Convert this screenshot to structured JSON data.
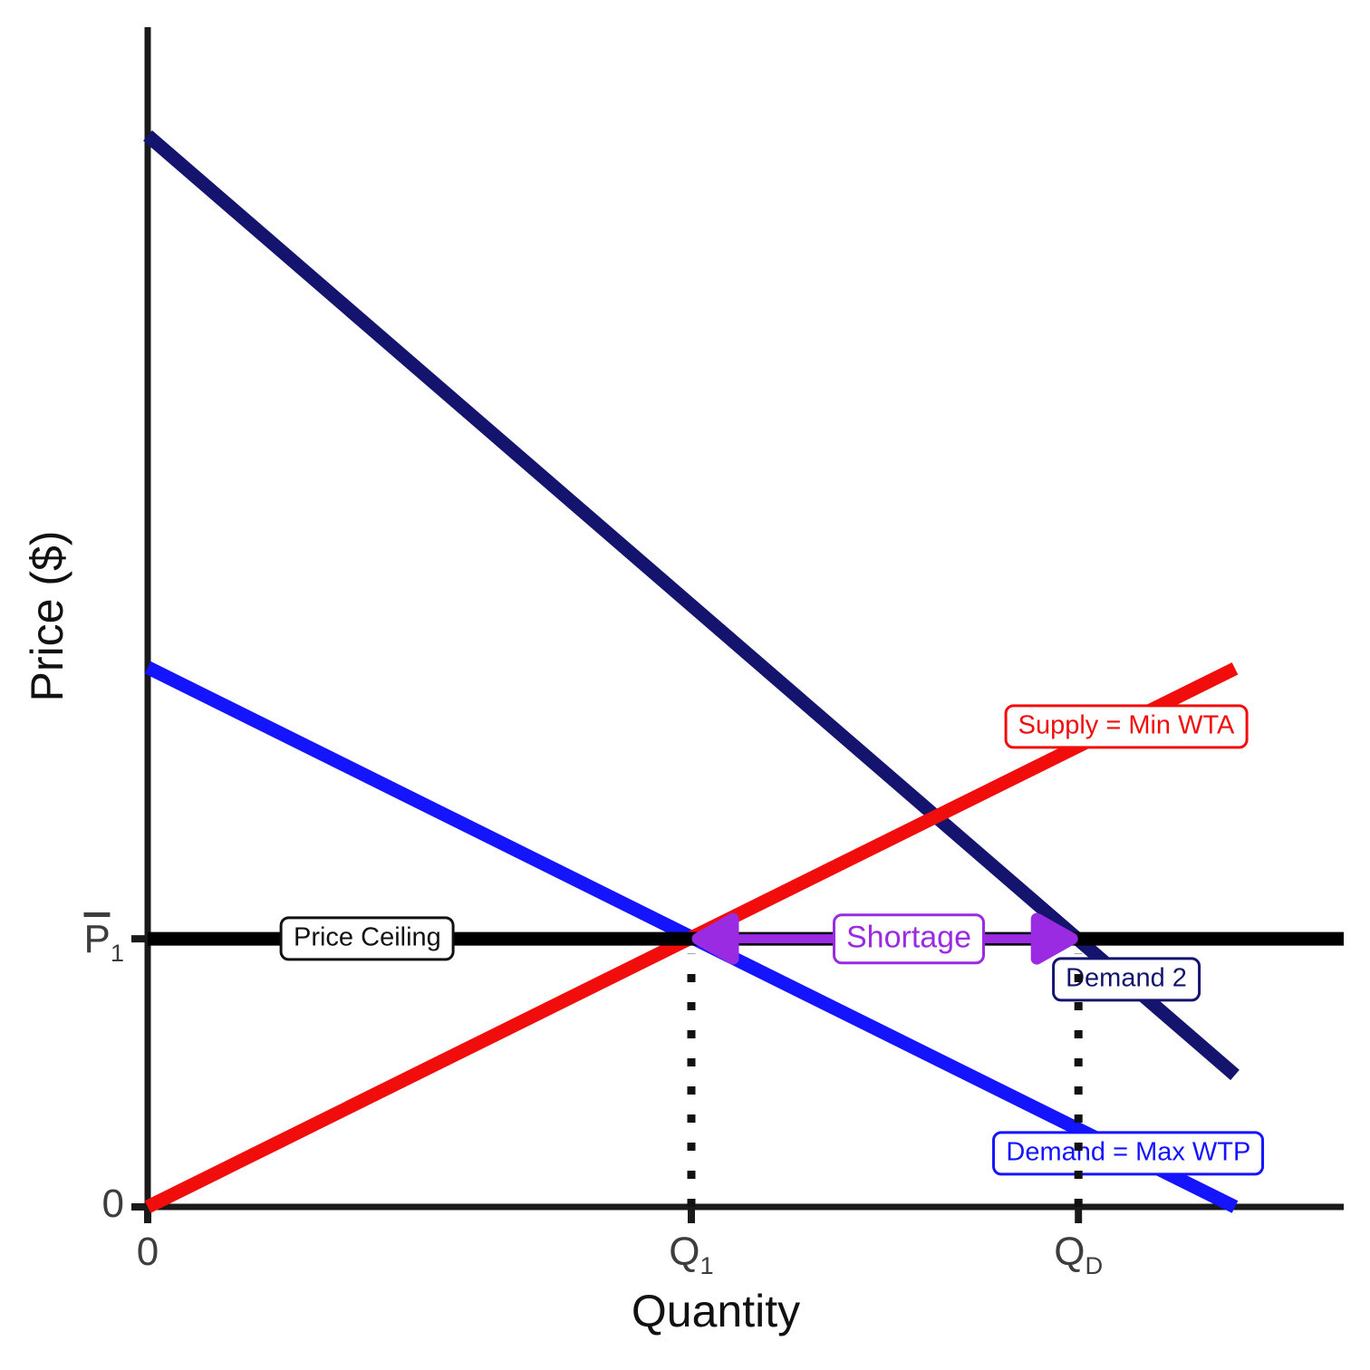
{
  "figure": {
    "background": "#ffffff",
    "axis_color": "#1a1a1a",
    "tick_label_color": "#3d3d3d",
    "guide_color": "#111111"
  },
  "chart_data": {
    "type": "line",
    "title": "",
    "xlabel": "Quantity",
    "ylabel": "Price ($)",
    "xlim": [
      0,
      110
    ],
    "ylim": [
      0,
      110
    ],
    "grid": false,
    "legend_position": "none",
    "series": [
      {
        "name": "Demand 2",
        "color": "#14146e",
        "width": 15,
        "points": [
          [
            0,
            99.9
          ],
          [
            100,
            12.3
          ]
        ]
      },
      {
        "name": "Demand = Max WTP",
        "color": "#1414ff",
        "width": 15,
        "points": [
          [
            0,
            50.3
          ],
          [
            100,
            0
          ]
        ]
      },
      {
        "name": "Supply = Min WTA",
        "color": "#f20d0d",
        "width": 15,
        "points": [
          [
            0,
            0
          ],
          [
            100,
            50.2
          ]
        ]
      },
      {
        "name": "Price Ceiling",
        "color": "#000000",
        "width": 15,
        "points": [
          [
            0,
            25
          ],
          [
            110,
            25
          ]
        ]
      }
    ],
    "key_points": {
      "q1": 50,
      "qd": 85.6,
      "price_ceiling_level": 25,
      "shortage": 35.6
    },
    "guides": [
      {
        "x": 50,
        "y_from": 0,
        "y_to": 23.6
      },
      {
        "x": 85.6,
        "y_from": 0,
        "y_to": 23.6
      }
    ],
    "arrow": {
      "x_from": 50,
      "x_to": 85.6,
      "y": 25,
      "color": "#9a2be2",
      "label": "Shortage"
    },
    "x_ticks": [
      {
        "x": 0,
        "base": "0",
        "sub": ""
      },
      {
        "x": 50,
        "base": "Q",
        "sub": "1"
      },
      {
        "x": 85.6,
        "base": "Q",
        "sub": "D"
      }
    ],
    "y_ticks": [
      {
        "y": 0,
        "base": "0",
        "sub": ""
      },
      {
        "y": 25,
        "base": "P",
        "sub": "1",
        "overbar": true
      }
    ],
    "annotations": [
      {
        "id": "price-ceiling-label",
        "text": "Price Ceiling",
        "color": "#111111",
        "x": 20.2,
        "y": 25,
        "font_px": 29
      },
      {
        "id": "shortage-label",
        "text": "Shortage",
        "color": "#9a2be2",
        "x": 70,
        "y": 25,
        "font_px": 34
      },
      {
        "id": "supply-label",
        "text": "Supply = Min WTA",
        "color": "#f20d0d",
        "x": 90,
        "y": 44.8,
        "font_px": 29
      },
      {
        "id": "demand2-label",
        "text": "Demand 2",
        "color": "#14146e",
        "x": 90,
        "y": 21.2,
        "font_px": 29
      },
      {
        "id": "demand1-label",
        "text": "Demand = Max WTP",
        "color": "#1414ff",
        "x": 90.2,
        "y": 5,
        "font_px": 29
      }
    ]
  }
}
